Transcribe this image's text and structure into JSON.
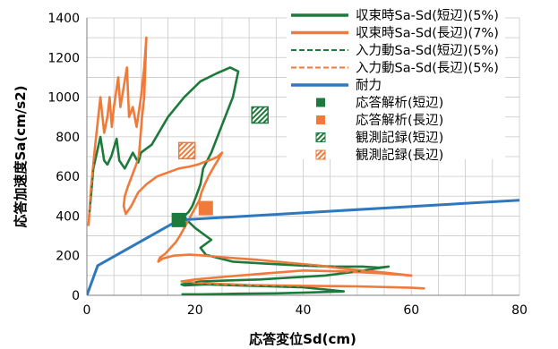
{
  "chart_data": {
    "type": "line",
    "xlabel": "応答変位Sd(cm)",
    "ylabel": "応答加速度Sa(cm/s2)",
    "xlim": [
      0,
      80
    ],
    "ylim": [
      0,
      1400
    ],
    "x_ticks": [
      "0",
      "20",
      "40",
      "60",
      "80"
    ],
    "y_ticks": [
      "0",
      "200",
      "400",
      "600",
      "800",
      "1000",
      "1200",
      "1400"
    ],
    "grid": true,
    "legend_position": "top-right",
    "colors": {
      "green": "#1e7a3c",
      "orange": "#f07a3a",
      "blue": "#2f78bd"
    },
    "series": [
      {
        "name": "収束時Sa-Sd(短辺)(5%)",
        "color": "#1e7a3c",
        "dash": "solid",
        "x": [
          0.5,
          1.2,
          2.5,
          3.2,
          3.8,
          4.5,
          5.5,
          6.0,
          7.0,
          8.5,
          9.5,
          10.0,
          12,
          15,
          18,
          21,
          24,
          26.5,
          28,
          27,
          25,
          23,
          21.5,
          21,
          20.2,
          19.5,
          18.8,
          18.0,
          18.5,
          20,
          22,
          23,
          21,
          22,
          24,
          27,
          33,
          40,
          46,
          51,
          54,
          55.8,
          50,
          44,
          38,
          32,
          26,
          21,
          19,
          17.5,
          18,
          22,
          28,
          34,
          40,
          44,
          47.5,
          42,
          35,
          28,
          21,
          17.5
        ],
        "y": [
          420,
          640,
          800,
          680,
          660,
          700,
          790,
          680,
          640,
          720,
          670,
          720,
          760,
          900,
          1000,
          1080,
          1120,
          1150,
          1130,
          1000,
          860,
          720,
          640,
          560,
          500,
          450,
          420,
          400,
          380,
          340,
          300,
          280,
          240,
          205,
          190,
          170,
          160,
          150,
          145,
          145,
          140,
          145,
          120,
          100,
          90,
          80,
          75,
          70,
          60,
          55,
          50,
          55,
          50,
          45,
          40,
          30,
          20,
          15,
          10,
          8,
          5,
          5
        ]
      },
      {
        "name": "収束時Sa-Sd(長辺)(7%)",
        "color": "#f07a3a",
        "dash": "solid",
        "x": [
          0.3,
          0.8,
          1.5,
          2.5,
          3.2,
          3.8,
          4.2,
          4.6,
          5.0,
          5.8,
          6.2,
          6.8,
          7.4,
          7.8,
          8.5,
          9.2,
          10.0,
          10.6,
          11.0,
          10.6,
          10.2,
          9.6,
          9.0,
          8.3,
          7.6,
          7.0,
          6.8,
          7.2,
          8.2,
          9.5,
          11,
          13,
          15,
          17,
          19,
          20.5,
          21.5,
          22.5,
          23.5,
          24.2,
          25.0,
          24.2,
          23.5,
          22.5,
          21.8,
          21.2,
          20.8,
          20.2,
          19.6,
          18.8,
          18.0,
          17.2,
          16.5,
          15.5,
          14.5,
          13.5,
          13.2,
          14,
          16,
          19,
          22,
          26,
          31,
          37,
          43,
          49,
          55,
          60,
          55,
          48,
          40,
          33,
          26,
          20,
          17.5,
          22,
          30,
          40,
          50,
          57,
          60,
          62.5
        ],
        "y": [
          350,
          550,
          750,
          1000,
          820,
          900,
          1000,
          850,
          950,
          1100,
          950,
          1050,
          1150,
          900,
          950,
          850,
          1000,
          1150,
          1300,
          1000,
          900,
          700,
          650,
          600,
          550,
          500,
          450,
          410,
          450,
          520,
          560,
          600,
          620,
          640,
          650,
          660,
          670,
          680,
          690,
          700,
          720,
          680,
          650,
          600,
          560,
          520,
          480,
          450,
          420,
          380,
          340,
          300,
          270,
          240,
          210,
          190,
          170,
          185,
          200,
          205,
          200,
          190,
          180,
          165,
          150,
          130,
          115,
          100,
          110,
          120,
          125,
          110,
          95,
          80,
          70,
          60,
          52,
          48,
          45,
          40,
          38,
          35
        ]
      },
      {
        "name": "入力動Sa-Sd(短辺)(5%)",
        "color": "#1e7a3c",
        "dash": "dashed",
        "x": [
          0.5,
          1.2,
          2.5,
          3.2,
          3.8,
          4.5,
          5.5,
          6.0,
          7.0,
          8.5,
          9.5,
          10.0,
          12,
          15,
          18,
          21,
          24,
          26.5,
          28,
          27,
          25,
          23,
          21.5,
          21,
          20.2,
          19.5,
          18.8,
          18.0,
          18.5,
          20,
          22,
          23,
          21,
          22,
          24,
          27,
          33,
          40,
          46,
          51,
          54,
          55.8,
          50,
          44,
          38,
          32,
          26,
          21,
          19,
          17.5,
          18,
          22,
          28,
          34,
          40,
          44,
          47.5,
          42,
          35,
          28,
          21,
          17.5
        ],
        "y": [
          420,
          640,
          800,
          680,
          660,
          700,
          790,
          680,
          640,
          720,
          670,
          720,
          760,
          900,
          1000,
          1080,
          1120,
          1150,
          1130,
          1000,
          860,
          720,
          640,
          560,
          500,
          450,
          420,
          400,
          380,
          340,
          300,
          280,
          240,
          205,
          190,
          170,
          160,
          150,
          145,
          145,
          140,
          145,
          120,
          100,
          90,
          80,
          75,
          70,
          60,
          55,
          50,
          55,
          50,
          45,
          40,
          30,
          20,
          15,
          10,
          8,
          5,
          5
        ]
      },
      {
        "name": "入力動Sa-Sd(長辺)(5%)",
        "color": "#f07a3a",
        "dash": "dashed",
        "x": [
          0.3,
          0.8,
          1.5,
          2.5,
          3.2,
          3.8,
          4.2,
          4.6,
          5.0,
          5.8,
          6.2,
          6.8,
          7.4,
          7.8,
          8.5,
          9.2,
          10.0,
          10.6,
          11.0,
          10.6,
          10.2,
          9.6,
          9.0,
          8.3,
          7.6,
          7.0,
          6.8,
          7.2,
          8.2,
          9.5,
          11,
          13,
          15,
          17,
          19,
          20.5,
          21.5,
          22.5,
          23.5,
          24.2,
          25.0,
          24.2,
          23.5,
          22.5,
          21.8,
          21.2,
          20.8,
          20.2,
          19.6,
          18.8,
          18.0,
          17.2,
          16.5,
          15.5,
          14.5,
          13.5,
          13.2,
          14,
          16,
          19,
          22,
          26,
          31,
          37,
          43,
          49,
          55,
          60,
          55,
          48,
          40,
          33,
          26,
          20,
          17.5,
          22,
          30,
          40,
          50,
          57,
          60,
          62.5
        ],
        "y": [
          350,
          550,
          750,
          1000,
          820,
          900,
          1000,
          850,
          950,
          1100,
          950,
          1050,
          1150,
          900,
          950,
          850,
          1000,
          1150,
          1300,
          1000,
          900,
          700,
          650,
          600,
          550,
          500,
          450,
          410,
          450,
          520,
          560,
          600,
          620,
          640,
          650,
          660,
          670,
          680,
          690,
          700,
          720,
          680,
          650,
          600,
          560,
          520,
          480,
          450,
          420,
          380,
          340,
          300,
          270,
          240,
          210,
          190,
          170,
          185,
          200,
          205,
          200,
          190,
          180,
          165,
          150,
          130,
          115,
          100,
          110,
          120,
          125,
          110,
          95,
          80,
          70,
          60,
          52,
          48,
          45,
          40,
          38,
          35
        ]
      },
      {
        "name": "耐力",
        "color": "#2f78bd",
        "dash": "solid",
        "x": [
          0,
          2,
          17,
          80
        ],
        "y": [
          0,
          150,
          380,
          480
        ]
      }
    ],
    "points": [
      {
        "name": "応答解析(短辺)",
        "color": "#1e7a3c",
        "marker": "square",
        "x": 17,
        "y": 380
      },
      {
        "name": "応答解析(長辺)",
        "color": "#f07a3a",
        "marker": "square",
        "x": 22,
        "y": 440
      },
      {
        "name": "観測記録(短辺)",
        "color": "#1e7a3c",
        "marker": "hatched-square",
        "x": 32,
        "y": 910
      },
      {
        "name": "観測記録(長辺)",
        "color": "#f07a3a",
        "marker": "hatched-square",
        "x": 18.5,
        "y": 730
      }
    ]
  }
}
